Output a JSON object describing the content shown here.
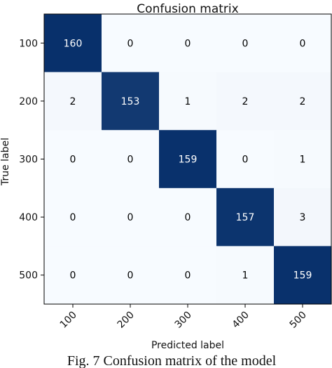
{
  "chart_data": {
    "type": "heatmap",
    "title": "Confusion matrix",
    "xlabel": "Predicted label",
    "ylabel": "True label",
    "x_categories": [
      "100",
      "200",
      "300",
      "400",
      "500"
    ],
    "y_categories": [
      "100",
      "200",
      "300",
      "400",
      "500"
    ],
    "values": [
      [
        160,
        0,
        0,
        0,
        0
      ],
      [
        2,
        153,
        1,
        2,
        2
      ],
      [
        0,
        0,
        159,
        0,
        1
      ],
      [
        0,
        0,
        0,
        157,
        3
      ],
      [
        0,
        0,
        0,
        1,
        159
      ]
    ],
    "colormap": "Blues",
    "vmin": 0,
    "vmax": 160,
    "low_color": "#f7fbff",
    "high_color": "#08306b"
  },
  "caption": "Fig. 7 Confusion matrix of the model"
}
